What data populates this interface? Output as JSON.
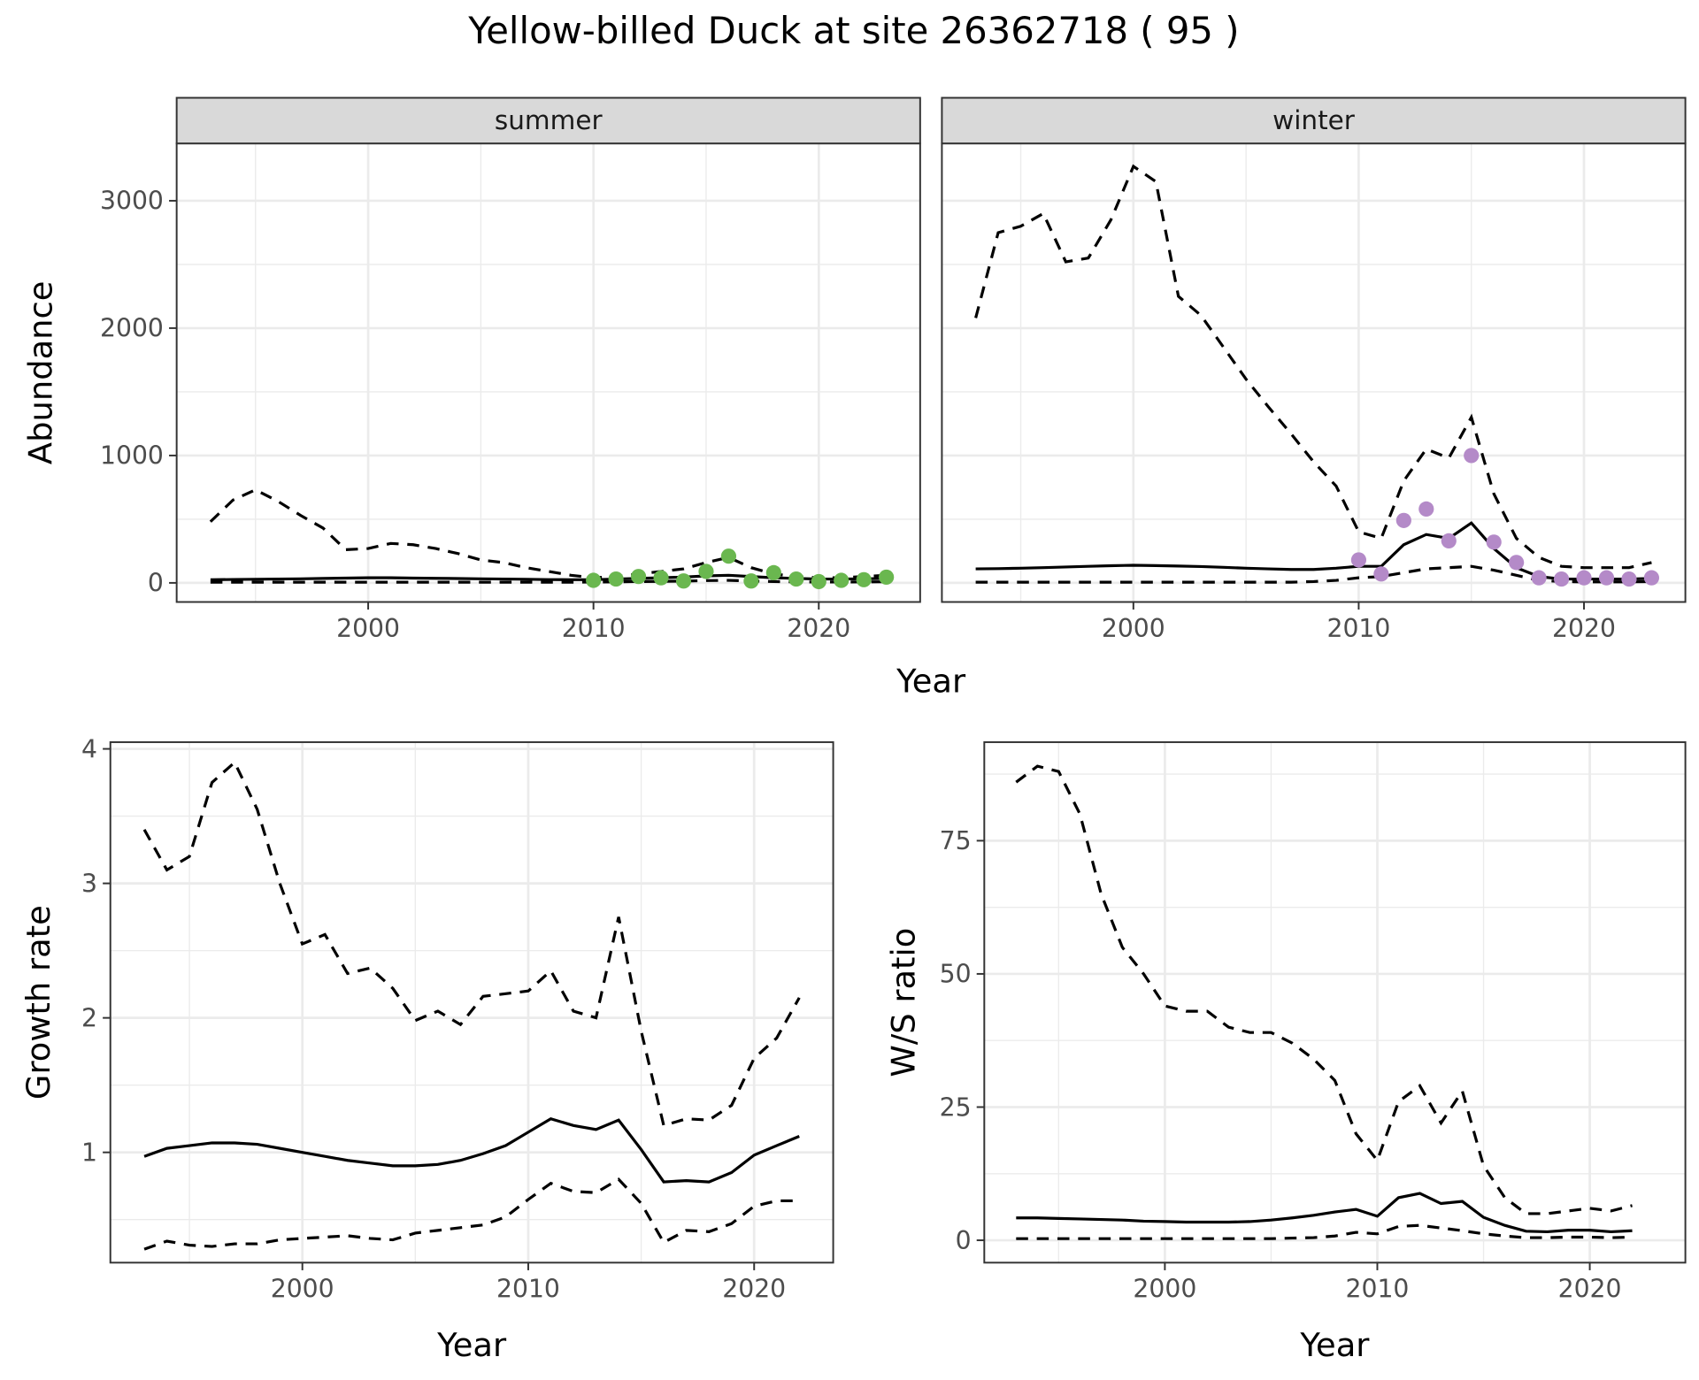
{
  "chart_data": [
    {
      "type": "line",
      "title": "Yellow-billed Duck at site 26362718 ( 95 )",
      "facet": "summer",
      "xlabel": "Year",
      "ylabel": "Abundance",
      "xlim": [
        1991.5,
        2024.5
      ],
      "ylim": [
        -150,
        3450
      ],
      "xticks": [
        2000,
        2010,
        2020
      ],
      "yticks": [
        0,
        1000,
        2000,
        3000
      ],
      "grid": true,
      "x": [
        1993,
        1994,
        1995,
        1996,
        1997,
        1998,
        1999,
        2000,
        2001,
        2002,
        2003,
        2004,
        2005,
        2006,
        2007,
        2008,
        2009,
        2010,
        2011,
        2012,
        2013,
        2014,
        2015,
        2016,
        2017,
        2018,
        2019,
        2020,
        2021,
        2022,
        2023
      ],
      "series": [
        {
          "style": "dashed",
          "values": [
            480,
            650,
            730,
            640,
            530,
            430,
            260,
            270,
            310,
            300,
            270,
            230,
            180,
            160,
            120,
            90,
            60,
            40,
            50,
            70,
            90,
            110,
            160,
            200,
            120,
            70,
            50,
            40,
            40,
            50,
            60
          ]
        },
        {
          "style": "solid",
          "values": [
            25,
            27,
            28,
            30,
            32,
            35,
            38,
            40,
            40,
            38,
            36,
            34,
            32,
            30,
            28,
            26,
            25,
            25,
            30,
            35,
            40,
            45,
            55,
            60,
            50,
            40,
            35,
            30,
            30,
            32,
            35
          ]
        },
        {
          "style": "dashed",
          "values": [
            5,
            5,
            5,
            5,
            5,
            5,
            5,
            5,
            5,
            5,
            5,
            5,
            5,
            5,
            5,
            5,
            5,
            6,
            8,
            10,
            12,
            14,
            18,
            20,
            15,
            10,
            8,
            7,
            7,
            8,
            9
          ]
        }
      ],
      "points": {
        "color": "#6ab74f",
        "x": [
          2010,
          2011,
          2012,
          2013,
          2014,
          2015,
          2016,
          2017,
          2018,
          2019,
          2020,
          2021,
          2022,
          2023
        ],
        "values": [
          20,
          30,
          50,
          40,
          15,
          90,
          210,
          15,
          80,
          30,
          10,
          20,
          25,
          45
        ]
      }
    },
    {
      "type": "line",
      "facet": "winter",
      "xlabel": "Year",
      "xlim": [
        1991.5,
        2024.5
      ],
      "ylim": [
        -150,
        3450
      ],
      "xticks": [
        2000,
        2010,
        2020
      ],
      "grid": true,
      "x": [
        1993,
        1994,
        1995,
        1996,
        1997,
        1998,
        1999,
        2000,
        2001,
        2002,
        2003,
        2004,
        2005,
        2006,
        2007,
        2008,
        2009,
        2010,
        2011,
        2012,
        2013,
        2014,
        2015,
        2016,
        2017,
        2018,
        2019,
        2020,
        2021,
        2022,
        2023
      ],
      "series": [
        {
          "style": "dashed",
          "values": [
            2080,
            2750,
            2800,
            2900,
            2520,
            2550,
            2850,
            3270,
            3150,
            2250,
            2100,
            1850,
            1600,
            1380,
            1170,
            950,
            760,
            400,
            350,
            800,
            1050,
            980,
            1300,
            700,
            350,
            200,
            130,
            120,
            120,
            120,
            160
          ]
        },
        {
          "style": "solid",
          "values": [
            110,
            112,
            115,
            120,
            125,
            130,
            135,
            138,
            136,
            132,
            128,
            122,
            115,
            110,
            105,
            105,
            115,
            130,
            130,
            300,
            380,
            350,
            470,
            270,
            120,
            50,
            30,
            30,
            30,
            30,
            35
          ]
        },
        {
          "style": "dashed",
          "values": [
            5,
            5,
            5,
            5,
            5,
            5,
            5,
            5,
            5,
            5,
            5,
            5,
            5,
            5,
            5,
            10,
            20,
            40,
            50,
            80,
            110,
            120,
            130,
            100,
            60,
            20,
            10,
            8,
            8,
            8,
            10
          ]
        }
      ],
      "points": {
        "color": "#b48ac8",
        "x": [
          2010,
          2011,
          2012,
          2013,
          2014,
          2015,
          2016,
          2017,
          2018,
          2019,
          2020,
          2021,
          2022,
          2023
        ],
        "values": [
          180,
          70,
          490,
          580,
          330,
          1000,
          320,
          160,
          40,
          30,
          40,
          40,
          30,
          40
        ]
      }
    },
    {
      "type": "line",
      "xlabel": "Year",
      "ylabel": "Growth rate",
      "xlim": [
        1991.5,
        2023.5
      ],
      "ylim": [
        0.18,
        4.05
      ],
      "xticks": [
        2000,
        2010,
        2020
      ],
      "yticks": [
        1,
        2,
        3,
        4
      ],
      "grid": true,
      "x": [
        1993,
        1994,
        1995,
        1996,
        1997,
        1998,
        1999,
        2000,
        2001,
        2002,
        2003,
        2004,
        2005,
        2006,
        2007,
        2008,
        2009,
        2010,
        2011,
        2012,
        2013,
        2014,
        2015,
        2016,
        2017,
        2018,
        2019,
        2020,
        2021,
        2022
      ],
      "series": [
        {
          "style": "dashed",
          "values": [
            3.4,
            3.1,
            3.2,
            3.75,
            3.9,
            3.55,
            3.0,
            2.55,
            2.62,
            2.33,
            2.37,
            2.22,
            1.98,
            2.05,
            1.95,
            2.16,
            2.18,
            2.2,
            2.35,
            2.05,
            2.0,
            2.75,
            1.9,
            1.2,
            1.25,
            1.24,
            1.35,
            1.7,
            1.85,
            2.15
          ]
        },
        {
          "style": "solid",
          "values": [
            0.97,
            1.03,
            1.05,
            1.07,
            1.07,
            1.06,
            1.03,
            1.0,
            0.97,
            0.94,
            0.92,
            0.9,
            0.9,
            0.91,
            0.94,
            0.99,
            1.05,
            1.15,
            1.25,
            1.2,
            1.17,
            1.24,
            1.02,
            0.78,
            0.79,
            0.78,
            0.85,
            0.98,
            1.05,
            1.12
          ]
        },
        {
          "style": "dashed",
          "values": [
            0.28,
            0.34,
            0.31,
            0.3,
            0.32,
            0.32,
            0.35,
            0.36,
            0.37,
            0.38,
            0.36,
            0.35,
            0.4,
            0.42,
            0.44,
            0.46,
            0.52,
            0.65,
            0.77,
            0.71,
            0.7,
            0.8,
            0.62,
            0.33,
            0.42,
            0.41,
            0.47,
            0.6,
            0.64,
            0.64
          ]
        }
      ]
    },
    {
      "type": "line",
      "xlabel": "Year",
      "ylabel": "W/S ratio",
      "xlim": [
        1991.5,
        2024.5
      ],
      "ylim": [
        -4.2,
        93.5
      ],
      "xticks": [
        2000,
        2010,
        2020
      ],
      "yticks": [
        0,
        25,
        50,
        75
      ],
      "grid": true,
      "x": [
        1993,
        1994,
        1995,
        1996,
        1997,
        1998,
        1999,
        2000,
        2001,
        2002,
        2003,
        2004,
        2005,
        2006,
        2007,
        2008,
        2009,
        2010,
        2011,
        2012,
        2013,
        2014,
        2015,
        2016,
        2017,
        2018,
        2019,
        2020,
        2021,
        2022
      ],
      "series": [
        {
          "style": "dashed",
          "values": [
            86,
            89,
            88,
            80,
            65,
            55,
            50,
            44,
            43,
            43,
            40,
            39,
            39,
            37,
            34,
            30,
            20,
            15,
            26,
            29,
            22,
            28,
            14,
            8,
            5,
            5,
            5.5,
            6,
            5.5,
            6.5
          ]
        },
        {
          "style": "solid",
          "values": [
            4.2,
            4.2,
            4.1,
            4.0,
            3.9,
            3.8,
            3.6,
            3.5,
            3.4,
            3.4,
            3.4,
            3.5,
            3.8,
            4.2,
            4.7,
            5.3,
            5.8,
            4.5,
            8,
            8.8,
            6.9,
            7.3,
            4.3,
            2.8,
            1.7,
            1.6,
            1.9,
            1.9,
            1.6,
            1.8
          ]
        },
        {
          "style": "dashed",
          "values": [
            0.3,
            0.3,
            0.3,
            0.3,
            0.3,
            0.3,
            0.3,
            0.3,
            0.3,
            0.3,
            0.3,
            0.3,
            0.3,
            0.4,
            0.5,
            0.8,
            1.5,
            1.2,
            2.6,
            2.8,
            2.3,
            1.8,
            1.2,
            0.8,
            0.5,
            0.5,
            0.6,
            0.6,
            0.5,
            0.6
          ]
        }
      ]
    }
  ]
}
